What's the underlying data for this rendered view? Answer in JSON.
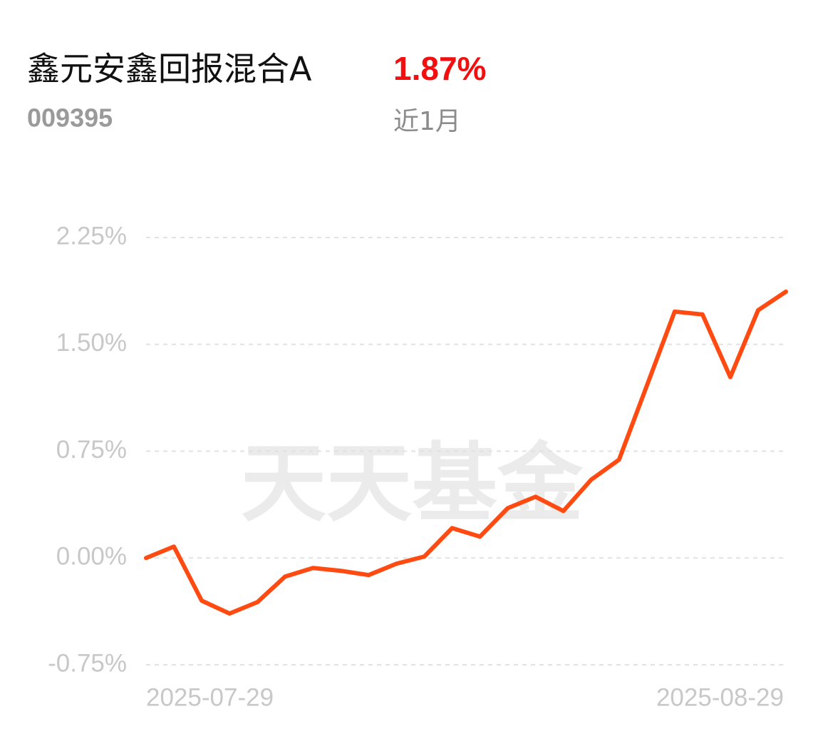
{
  "header": {
    "title": "鑫元安鑫回报混合A",
    "change": "1.87%",
    "code": "009395",
    "period": "近1月"
  },
  "chart_data": {
    "type": "line",
    "watermark": "天天基金",
    "categories": [
      "2025-07-29",
      null,
      null,
      null,
      null,
      null,
      null,
      null,
      null,
      null,
      null,
      null,
      null,
      null,
      null,
      null,
      null,
      null,
      null,
      null,
      null,
      null,
      null,
      "2025-08-29"
    ],
    "series": [
      {
        "color": "#ff4a12",
        "values": [
          0.0,
          0.08,
          -0.3,
          -0.39,
          -0.31,
          -0.13,
          -0.07,
          -0.09,
          -0.12,
          -0.04,
          0.01,
          0.21,
          0.15,
          0.35,
          0.43,
          0.33,
          0.55,
          0.69,
          1.21,
          1.73,
          1.71,
          1.27,
          1.74,
          1.87
        ]
      }
    ],
    "ylim": [
      -0.75,
      2.25
    ],
    "yticks": [
      {
        "value": -0.75,
        "label": "-0.75%"
      },
      {
        "value": 0,
        "label": "0.00%"
      },
      {
        "value": 0.75,
        "label": "0.75%"
      },
      {
        "value": 1.5,
        "label": "1.50%"
      },
      {
        "value": 2.25,
        "label": "2.25%"
      }
    ],
    "grid": true
  }
}
